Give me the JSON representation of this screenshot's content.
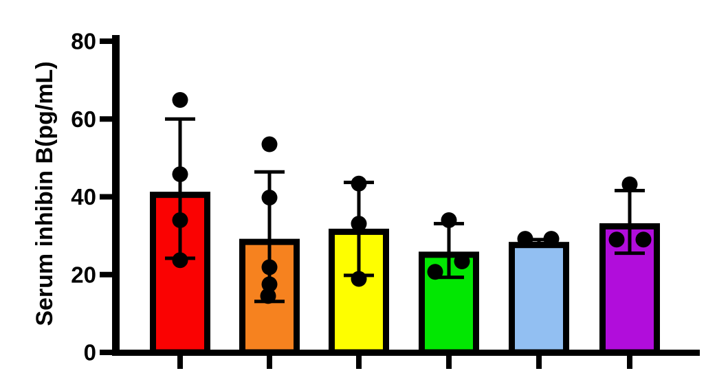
{
  "chart_data": {
    "type": "bar",
    "title": "",
    "ylabel": "Serum inhibin B(pg/mL)",
    "xlabel": "",
    "ylim": [
      0,
      80
    ],
    "yticks": [
      0,
      20,
      40,
      60,
      80
    ],
    "ytick_labels": [
      "0",
      "20",
      "40",
      "60",
      "80"
    ],
    "grid": false,
    "legend": "none",
    "x_tick_labels_visible": false,
    "axis_color": "#000000",
    "point_color": "#000000",
    "background_color": "#ffffff",
    "series": [
      {
        "name": "group-1-red",
        "bar_color": "#FA0202",
        "mean": 41.3,
        "whisker_low": 24.2,
        "whisker_high": 60.0,
        "points": [
          64.9,
          45.8,
          34.0,
          23.7
        ],
        "point_x_jitter": [
          0,
          0,
          0,
          0
        ]
      },
      {
        "name": "group-2-orange",
        "bar_color": "#F6821F",
        "mean": 29.2,
        "whisker_low": 13.1,
        "whisker_high": 46.4,
        "points": [
          53.5,
          39.8,
          21.9,
          17.5,
          14.5
        ],
        "point_x_jitter": [
          0,
          0,
          0,
          0,
          -2
        ]
      },
      {
        "name": "group-3-yellow",
        "bar_color": "#FEFE00",
        "mean": 31.8,
        "whisker_low": 19.8,
        "whisker_high": 43.7,
        "points": [
          43.4,
          33.1,
          18.9
        ],
        "point_x_jitter": [
          0,
          0,
          0
        ]
      },
      {
        "name": "group-4-green",
        "bar_color": "#02E702",
        "mean": 25.9,
        "whisker_low": 19.3,
        "whisker_high": 33.1,
        "points": [
          34.0,
          23.4,
          20.7
        ],
        "point_x_jitter": [
          0,
          19,
          -20
        ]
      },
      {
        "name": "group-5-blue",
        "bar_color": "#92BFF2",
        "mean": 28.4,
        "whisker_low": 28.0,
        "whisker_high": 29.0,
        "points": [
          29.2,
          29.2
        ],
        "point_x_jitter": [
          -20,
          18
        ]
      },
      {
        "name": "group-6-purple",
        "bar_color": "#B10DDB",
        "mean": 33.2,
        "whisker_low": 25.5,
        "whisker_high": 41.6,
        "points": [
          43.2,
          29.0,
          29.0
        ],
        "point_x_jitter": [
          0,
          -19,
          20
        ]
      }
    ]
  }
}
